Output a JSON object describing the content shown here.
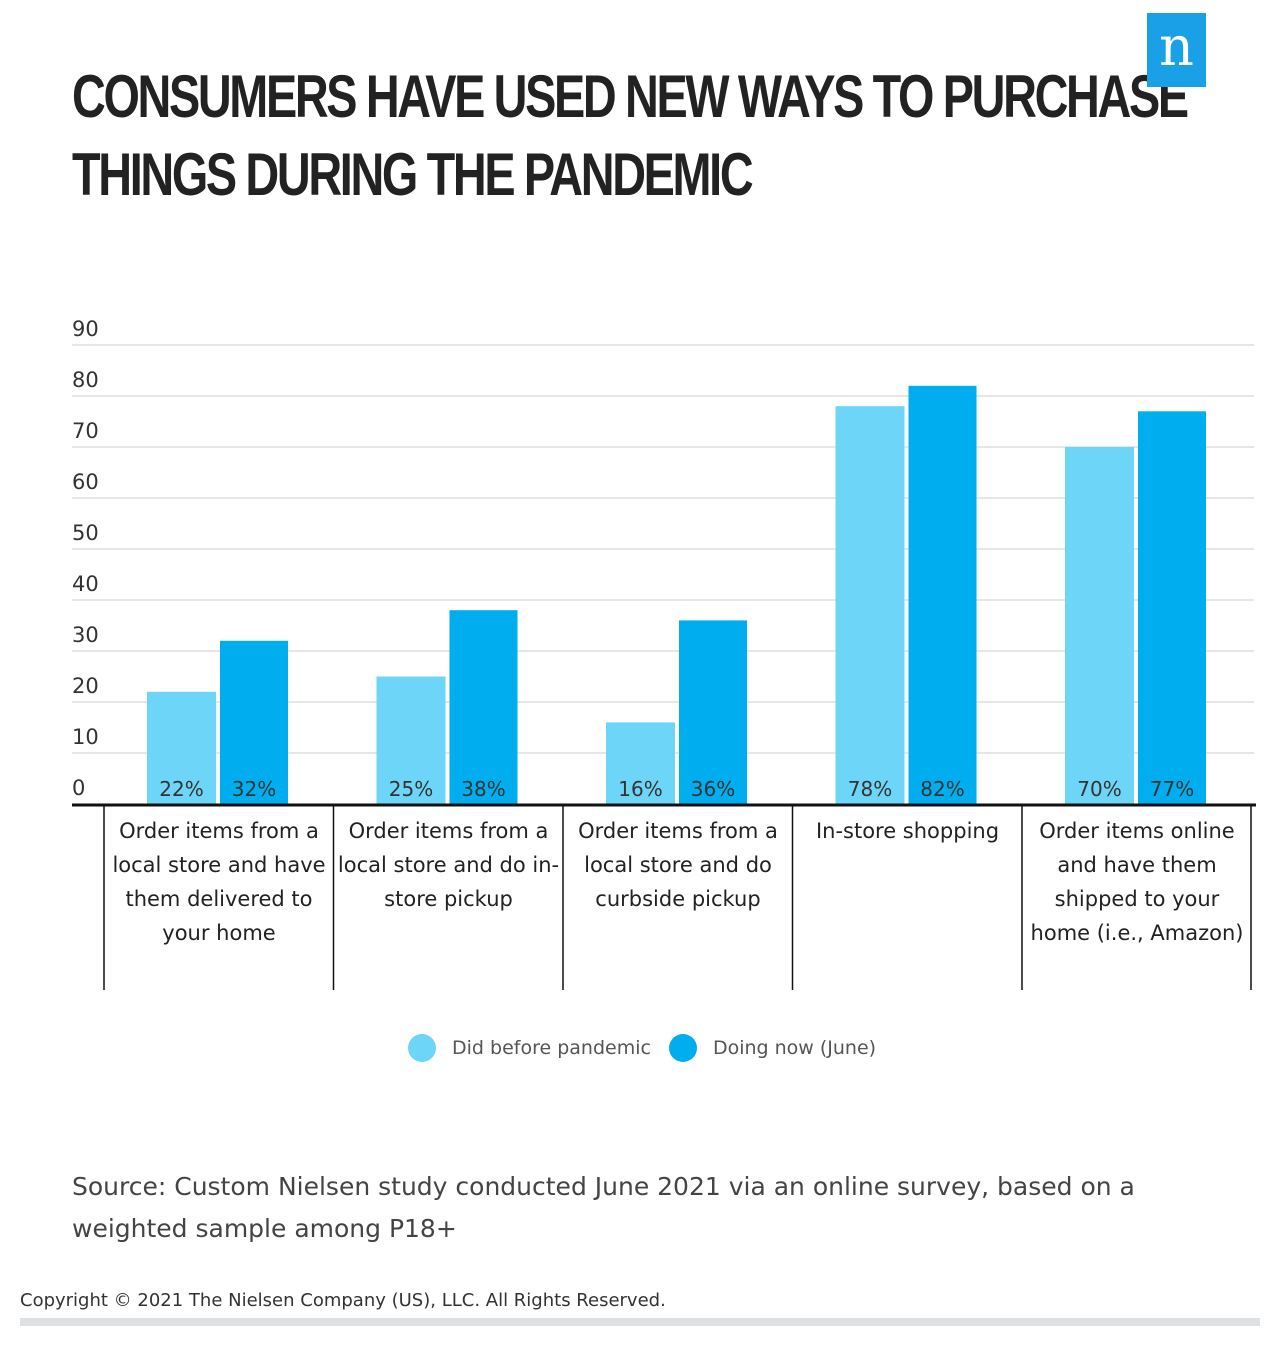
{
  "title": "CONSUMERS HAVE USED NEW WAYS TO PURCHASE THINGS DURING THE PANDEMIC",
  "logo_text": "n",
  "colors": {
    "before": "#6dd5f7",
    "now": "#00aeef",
    "logo": "#1aa0e6"
  },
  "chart_data": {
    "type": "bar",
    "title": "CONSUMERS HAVE USED NEW WAYS TO PURCHASE THINGS DURING THE PANDEMIC",
    "categories": [
      "Order items from a local store and have them delivered to your home",
      "Order items from a local store and do in-store pickup",
      "Order items from a local store and do curbside pickup",
      "In-store shopping",
      "Order items online and have them shipped to your home (i.e., Amazon)"
    ],
    "series": [
      {
        "name": "Did before pandemic",
        "values": [
          22,
          25,
          16,
          78,
          70
        ],
        "labels": [
          "22%",
          "25%",
          "16%",
          "78%",
          "70%"
        ]
      },
      {
        "name": "Doing now (June)",
        "values": [
          32,
          38,
          36,
          82,
          77
        ],
        "labels": [
          "32%",
          "38%",
          "36%",
          "82%",
          "77%"
        ]
      }
    ],
    "yticks": [
      "0",
      "10",
      "20",
      "30",
      "40",
      "50",
      "60",
      "70",
      "80",
      "90"
    ],
    "ylim": [
      0,
      90
    ],
    "grid": true,
    "legend": "bottom"
  },
  "source": "Source: Custom Nielsen study conducted June 2021 via an online survey, based on a weighted sample among P18+",
  "copyright": "Copyright © 2021 The Nielsen Company (US), LLC. All Rights Reserved."
}
